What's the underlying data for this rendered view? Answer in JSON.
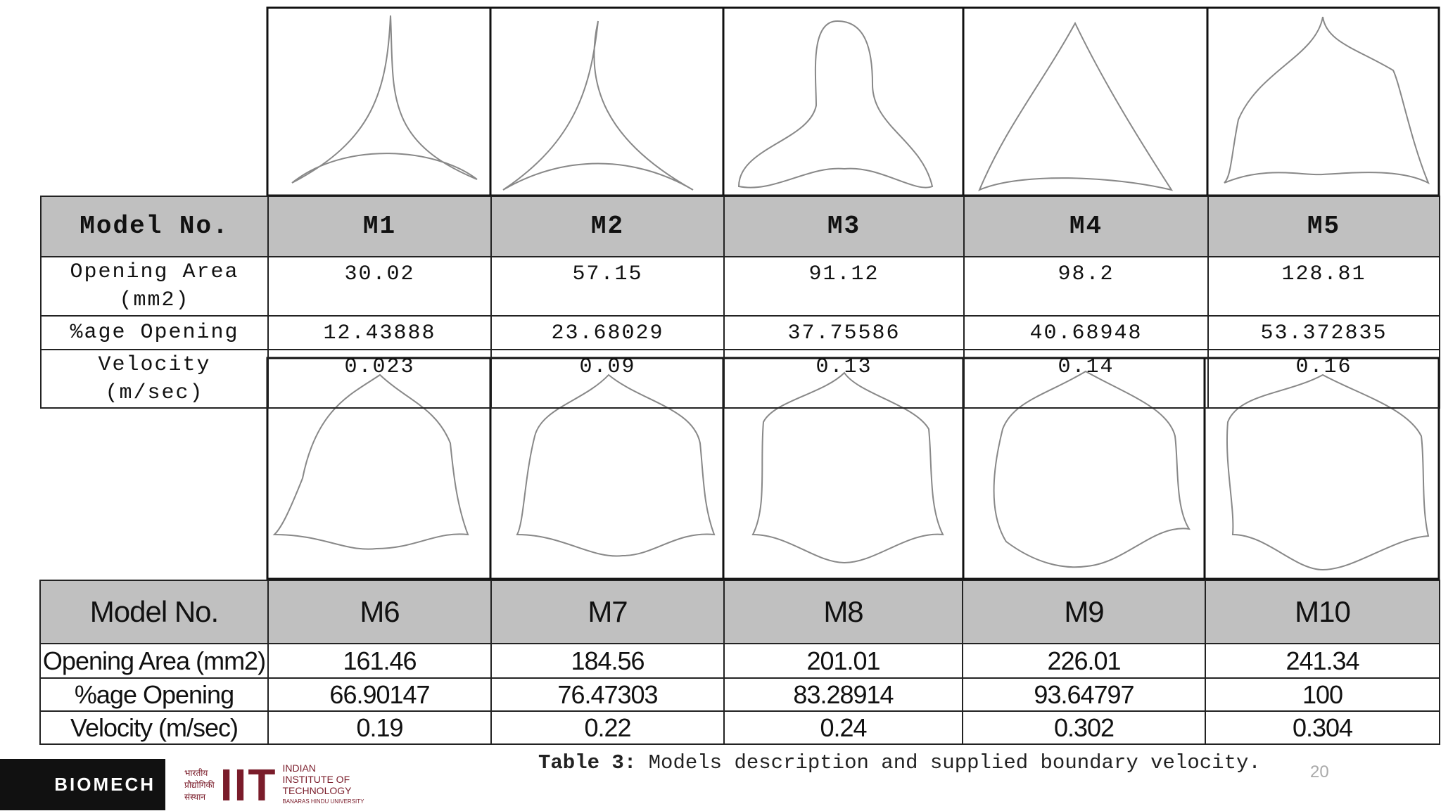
{
  "table1": {
    "header": [
      "Model No.",
      "M1",
      "M2",
      "M3",
      "M4",
      "M5"
    ],
    "rows": [
      [
        "Opening Area (mm2)",
        "30.02",
        "57.15",
        "91.12",
        "98.2",
        "128.81"
      ],
      [
        "%age Opening",
        "12.43888",
        "23.68029",
        "37.75586",
        "40.68948",
        "53.372835"
      ],
      [
        "Velocity (m/sec)",
        "0.023",
        "0.09",
        "0.13",
        "0.14",
        "0.16"
      ]
    ]
  },
  "table2": {
    "header": [
      "Model No.",
      "M6",
      "M7",
      "M8",
      "M9",
      "M10"
    ],
    "rows": [
      [
        "Opening Area (mm2)",
        "161.46",
        "184.56",
        "201.01",
        "226.01",
        "241.34"
      ],
      [
        "%age Opening",
        "66.90147",
        "76.47303",
        "83.28914",
        "93.64797",
        "100"
      ],
      [
        "Velocity (m/sec)",
        "0.19",
        "0.22",
        "0.24",
        "0.302",
        "0.304"
      ]
    ]
  },
  "caption": {
    "label": "Table 3:",
    "text": "Models description and supplied boundary velocity."
  },
  "page_number": "20",
  "logos": {
    "biomech": "BIOMECH",
    "iit_hindi": [
      "भारतीय",
      "प्रौद्योगिकी",
      "संस्थान"
    ],
    "iit": "IIT",
    "iit_name": [
      "INDIAN",
      "INSTITUTE OF",
      "TECHNOLOGY"
    ],
    "iit_sub": "BANARAS HINDU UNIVERSITY"
  }
}
